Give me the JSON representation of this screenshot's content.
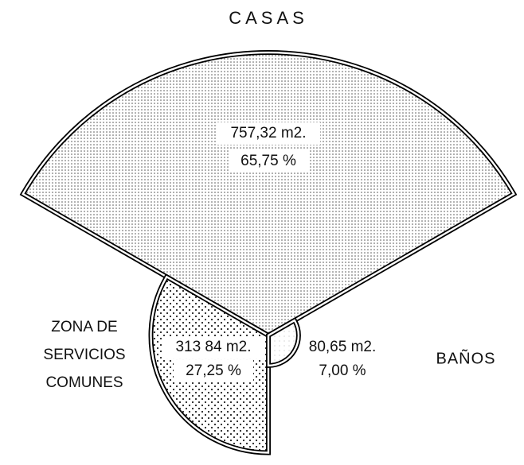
{
  "chart_data": {
    "type": "pie",
    "categories": [
      "CASAS",
      [
        "ZONA DE",
        "SERVICIOS",
        "COMUNES"
      ],
      "BAÑOS"
    ],
    "values": [
      757.32,
      313.84,
      80.65
    ],
    "value_labels": [
      "757,32 m2.",
      "313 84 m2.",
      "80,65 m2."
    ],
    "percentages": [
      65.75,
      27.25,
      7.0
    ],
    "percentage_labels": [
      "65,75 %",
      "27,25 %",
      "7,00 %"
    ],
    "color": "#000000"
  }
}
